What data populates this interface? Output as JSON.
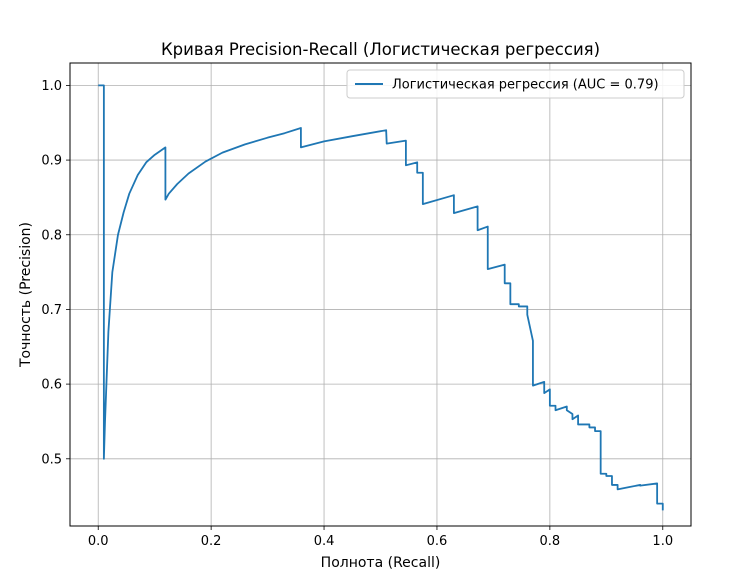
{
  "chart_data": {
    "type": "line",
    "title": "Кривая Precision-Recall (Логистическая регрессия)",
    "xlabel": "Полнота (Recall)",
    "ylabel": "Точность (Precision)",
    "xlim": [
      -0.05,
      1.05
    ],
    "ylim": [
      0.41,
      1.03
    ],
    "xticks": [
      0.0,
      0.2,
      0.4,
      0.6,
      0.8,
      1.0
    ],
    "xtick_labels": [
      "0.0",
      "0.2",
      "0.4",
      "0.6",
      "0.8",
      "1.0"
    ],
    "yticks": [
      0.5,
      0.6,
      0.7,
      0.8,
      0.9,
      1.0
    ],
    "ytick_labels": [
      "0.5",
      "0.6",
      "0.7",
      "0.8",
      "0.9",
      "1.0"
    ],
    "grid": true,
    "legend_position": "top-right",
    "colors": {
      "series": "#1f77b4"
    },
    "series": [
      {
        "name": "Логистическая регрессия (AUC = 0.79)",
        "x": [
          0.0,
          0.01,
          0.01,
          0.012,
          0.018,
          0.025,
          0.035,
          0.045,
          0.055,
          0.07,
          0.085,
          0.1,
          0.119,
          0.119,
          0.125,
          0.14,
          0.16,
          0.19,
          0.22,
          0.26,
          0.3,
          0.33,
          0.359,
          0.359,
          0.4,
          0.45,
          0.51,
          0.511,
          0.545,
          0.545,
          0.565,
          0.565,
          0.575,
          0.575,
          0.63,
          0.63,
          0.672,
          0.672,
          0.69,
          0.69,
          0.72,
          0.72,
          0.73,
          0.73,
          0.745,
          0.745,
          0.76,
          0.76,
          0.77,
          0.77,
          0.79,
          0.79,
          0.8,
          0.8,
          0.81,
          0.81,
          0.83,
          0.83,
          0.84,
          0.84,
          0.85,
          0.85,
          0.87,
          0.87,
          0.88,
          0.88,
          0.89,
          0.89,
          0.9,
          0.9,
          0.91,
          0.91,
          0.92,
          0.92,
          0.94,
          0.94,
          0.96,
          0.96,
          0.99,
          0.99,
          1.0,
          1.0
        ],
        "y": [
          1.0,
          1.0,
          0.5,
          0.55,
          0.67,
          0.75,
          0.8,
          0.83,
          0.855,
          0.88,
          0.897,
          0.907,
          0.917,
          0.847,
          0.855,
          0.868,
          0.882,
          0.898,
          0.91,
          0.921,
          0.93,
          0.936,
          0.943,
          0.917,
          0.925,
          0.932,
          0.94,
          0.922,
          0.926,
          0.893,
          0.897,
          0.883,
          0.883,
          0.841,
          0.853,
          0.829,
          0.838,
          0.806,
          0.811,
          0.754,
          0.76,
          0.735,
          0.735,
          0.707,
          0.707,
          0.704,
          0.704,
          0.693,
          0.658,
          0.598,
          0.603,
          0.588,
          0.593,
          0.571,
          0.571,
          0.565,
          0.57,
          0.565,
          0.56,
          0.553,
          0.558,
          0.546,
          0.546,
          0.542,
          0.542,
          0.537,
          0.537,
          0.48,
          0.48,
          0.477,
          0.477,
          0.465,
          0.465,
          0.459,
          0.462,
          0.462,
          0.465,
          0.464,
          0.467,
          0.44,
          0.44,
          0.431
        ]
      }
    ]
  }
}
